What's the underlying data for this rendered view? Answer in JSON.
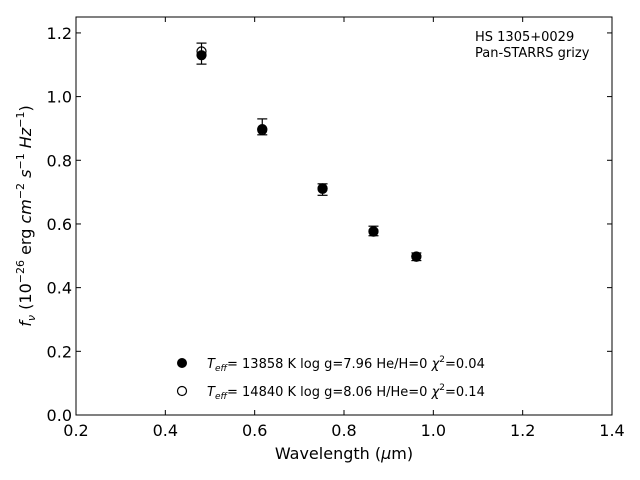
{
  "chart_data": {
    "type": "scatter",
    "title": "",
    "annotation": [
      "HS 1305+0029",
      "Pan-STARRS grizy"
    ],
    "xlabel": "Wavelength (μm)",
    "ylabel": "f_ν (10^-26 erg cm^-2 s^-1 Hz^-1)",
    "xlim": [
      0.2,
      1.4
    ],
    "ylim": [
      0.0,
      1.25
    ],
    "xticks": [
      "0.2",
      "0.4",
      "0.6",
      "0.8",
      "1.0",
      "1.2",
      "1.4"
    ],
    "yticks": [
      "0.0",
      "0.2",
      "0.4",
      "0.6",
      "0.8",
      "1.0",
      "1.2"
    ],
    "grid": false,
    "legend_placement": "lower-center",
    "observed": {
      "x": [
        0.481,
        0.617,
        0.752,
        0.866,
        0.962
      ],
      "y": [
        1.135,
        0.905,
        0.708,
        0.578,
        0.497
      ],
      "yerr": [
        0.033,
        0.025,
        0.018,
        0.015,
        0.012
      ]
    },
    "series": [
      {
        "name": "T_eff= 13858 K  log g=7.96  He/H=0  χ²=0.04",
        "marker": "filled-circle",
        "x": [
          0.481,
          0.617,
          0.752,
          0.866,
          0.962
        ],
        "y": [
          1.13,
          0.898,
          0.71,
          0.576,
          0.497
        ]
      },
      {
        "name": "T_eff= 14840 K  log g=8.06  H/He=0  χ²=0.14",
        "marker": "open-circle",
        "x": [
          0.481,
          0.617,
          0.752,
          0.866,
          0.962
        ],
        "y": [
          1.142,
          0.895,
          0.712,
          0.577,
          0.498
        ]
      }
    ]
  }
}
